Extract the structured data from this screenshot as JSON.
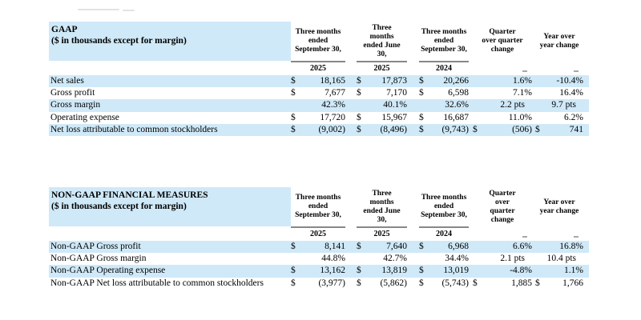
{
  "page": {
    "background": "#ffffff"
  },
  "colors": {
    "row_highlight": "#cfe9f8",
    "header_band": "#cfe9f8",
    "header_rule": "#878787",
    "artifact_mark": "#e3e3e3"
  },
  "tables": [
    {
      "title": "GAAP",
      "subtitle": "($ in thousands except for margin)",
      "columns": [
        {
          "lines": [
            "Three months",
            "ended",
            "September 30,"
          ],
          "year": "2025",
          "ruled": true
        },
        {
          "lines": [
            "Three",
            "months",
            "ended June",
            "30,"
          ],
          "year": "2025",
          "ruled": true
        },
        {
          "lines": [
            "Three months",
            "ended",
            "September 30,"
          ],
          "year": "2024",
          "ruled": true
        },
        {
          "lines": [
            "Quarter",
            "over quarter",
            "change"
          ],
          "year": "",
          "ruled": false
        },
        {
          "lines": [
            "Year over",
            "year change"
          ],
          "year": "",
          "ruled": false
        }
      ],
      "rows": [
        {
          "label": "Net sales",
          "cells": [
            {
              "d": "$",
              "v": "18,165"
            },
            {
              "d": "$",
              "v": "17,873"
            },
            {
              "d": "$",
              "v": "20,266"
            },
            {
              "d": "",
              "v": "1.6%"
            },
            {
              "d": "",
              "v": "-10.4%"
            }
          ]
        },
        {
          "label": "Gross profit",
          "cells": [
            {
              "d": "$",
              "v": "7,677"
            },
            {
              "d": "$",
              "v": "7,170"
            },
            {
              "d": "$",
              "v": "6,598"
            },
            {
              "d": "",
              "v": "7.1%"
            },
            {
              "d": "",
              "v": "16.4%"
            }
          ]
        },
        {
          "label": "Gross margin",
          "cells": [
            {
              "d": "",
              "v": "42.3%"
            },
            {
              "d": "",
              "v": "40.1%"
            },
            {
              "d": "",
              "v": "32.6%"
            },
            {
              "d": "",
              "v": "2.2 pts"
            },
            {
              "d": "",
              "v": "9.7 pts"
            }
          ]
        },
        {
          "label": "Operating expense",
          "cells": [
            {
              "d": "$",
              "v": "17,720"
            },
            {
              "d": "$",
              "v": "15,967"
            },
            {
              "d": "$",
              "v": "16,687"
            },
            {
              "d": "",
              "v": "11.0%"
            },
            {
              "d": "",
              "v": "6.2%"
            }
          ]
        },
        {
          "label": "Net loss attributable to common stockholders",
          "cells": [
            {
              "d": "$",
              "v": "(9,002)"
            },
            {
              "d": "$",
              "v": "(8,496)"
            },
            {
              "d": "$",
              "v": "(9,743)"
            },
            {
              "d": "$",
              "v": "(506)"
            },
            {
              "d": "$",
              "v": "741"
            }
          ]
        }
      ]
    },
    {
      "title": "NON-GAAP FINANCIAL MEASURES",
      "subtitle": "($ in thousands except for margin)",
      "columns": [
        {
          "lines": [
            "Three months",
            "ended",
            "September 30,"
          ],
          "year": "2025",
          "ruled": true
        },
        {
          "lines": [
            "Three",
            "months",
            "ended June",
            "30,"
          ],
          "year": "2025",
          "ruled": true
        },
        {
          "lines": [
            "Three months",
            "ended",
            "September 30,"
          ],
          "year": "2024",
          "ruled": true
        },
        {
          "lines": [
            "Quarter",
            "over",
            "quarter",
            "change"
          ],
          "year": "",
          "ruled": false
        },
        {
          "lines": [
            "Year over",
            "year change"
          ],
          "year": "",
          "ruled": false
        }
      ],
      "rows": [
        {
          "label": "Non-GAAP Gross profit",
          "cells": [
            {
              "d": "$",
              "v": "8,141"
            },
            {
              "d": "$",
              "v": "7,640"
            },
            {
              "d": "$",
              "v": "6,968"
            },
            {
              "d": "",
              "v": "6.6%"
            },
            {
              "d": "",
              "v": "16.8%"
            }
          ]
        },
        {
          "label": "Non-GAAP Gross margin",
          "cells": [
            {
              "d": "",
              "v": "44.8%"
            },
            {
              "d": "",
              "v": "42.7%"
            },
            {
              "d": "",
              "v": "34.4%"
            },
            {
              "d": "",
              "v": "2.1 pts"
            },
            {
              "d": "",
              "v": "10.4 pts"
            }
          ]
        },
        {
          "label": "Non-GAAP Operating expense",
          "cells": [
            {
              "d": "$",
              "v": "13,162"
            },
            {
              "d": "$",
              "v": "13,819"
            },
            {
              "d": "$",
              "v": "13,019"
            },
            {
              "d": "",
              "v": "-4.8%"
            },
            {
              "d": "",
              "v": "1.1%"
            }
          ]
        },
        {
          "label": "Non-GAAP Net loss attributable to common stockholders",
          "cells": [
            {
              "d": "$",
              "v": "(3,977)"
            },
            {
              "d": "$",
              "v": "(5,862)"
            },
            {
              "d": "$",
              "v": "(5,743)"
            },
            {
              "d": "$",
              "v": "1,885"
            },
            {
              "d": "$",
              "v": "1,766"
            }
          ]
        }
      ]
    }
  ]
}
